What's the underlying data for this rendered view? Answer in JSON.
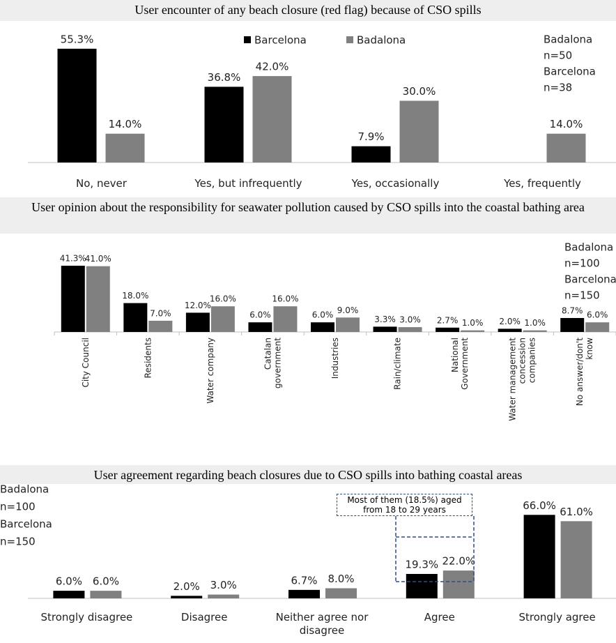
{
  "chart_data": [
    {
      "type": "bar",
      "title": "User encounter of any beach closure (red flag) because of CSO spills",
      "categories": [
        "No, never",
        "Yes, but infrequently",
        "Yes, occasionally",
        "Yes, frequently"
      ],
      "series": [
        {
          "name": "Barcelona",
          "n": "n=38",
          "color": "#000000",
          "values": [
            55.3,
            36.8,
            7.9,
            null
          ],
          "value_labels": [
            "55.3%",
            "36.8%",
            "7.9%",
            null
          ]
        },
        {
          "name": "Badalona",
          "n": "n=50",
          "color": "#808080",
          "values": [
            14.0,
            42.0,
            30.0,
            14.0
          ],
          "value_labels": [
            "14.0%",
            "42.0%",
            "30.0%",
            "14.0%"
          ]
        }
      ],
      "ylim": [
        0,
        60
      ],
      "legend": "top"
    },
    {
      "type": "bar",
      "title": "User opinion about the responsibility for seawater pollution caused by CSO spills into the coastal bathing area",
      "categories": [
        "City Council",
        "Residents",
        "Water company",
        "Catalan government",
        "Industries",
        "Rain/climate",
        "National Government",
        "Water management concession companies",
        "No answer/don't know"
      ],
      "series": [
        {
          "name": "Barcelona",
          "n": "n=150",
          "color": "#000000",
          "values": [
            41.3,
            18.0,
            12.0,
            6.0,
            6.0,
            3.3,
            2.7,
            2.0,
            8.7
          ],
          "value_labels": [
            "41.3%",
            "18.0%",
            "12.0%",
            "6.0%",
            "6.0%",
            "3.3%",
            "2.7%",
            "2.0%",
            "8.7%"
          ]
        },
        {
          "name": "Badalona",
          "n": "n=100",
          "color": "#808080",
          "values": [
            41.0,
            7.0,
            16.0,
            16.0,
            9.0,
            3.0,
            1.0,
            1.0,
            6.0
          ],
          "value_labels": [
            "41.0%",
            "7.0%",
            "16.0%",
            "16.0%",
            "9.0%",
            "3.0%",
            "1.0%",
            "1.0%",
            "6.0%"
          ]
        }
      ],
      "ylim": [
        0,
        45
      ]
    },
    {
      "type": "bar",
      "title": "User agreement regarding beach closures due to CSO spills into bathing coastal areas",
      "categories": [
        "Strongly disagree",
        "Disagree",
        "Neither agree nor disagree",
        "Agree",
        "Strongly agree"
      ],
      "series": [
        {
          "name": "Barcelona",
          "n": "n=150",
          "color": "#000000",
          "values": [
            6.0,
            2.0,
            6.7,
            19.3,
            66.0
          ],
          "value_labels": [
            "6.0%",
            "2.0%",
            "6.7%",
            "19.3%",
            "66.0%"
          ]
        },
        {
          "name": "Badalona",
          "n": "n=100",
          "color": "#808080",
          "values": [
            6.0,
            3.0,
            8.0,
            22.0,
            61.0
          ],
          "value_labels": [
            "6.0%",
            "3.0%",
            "8.0%",
            "22.0%",
            "61.0%"
          ]
        }
      ],
      "ylim": [
        0,
        70
      ],
      "callout": "Most of them (18.5%) aged from 18 to 29 years"
    }
  ]
}
